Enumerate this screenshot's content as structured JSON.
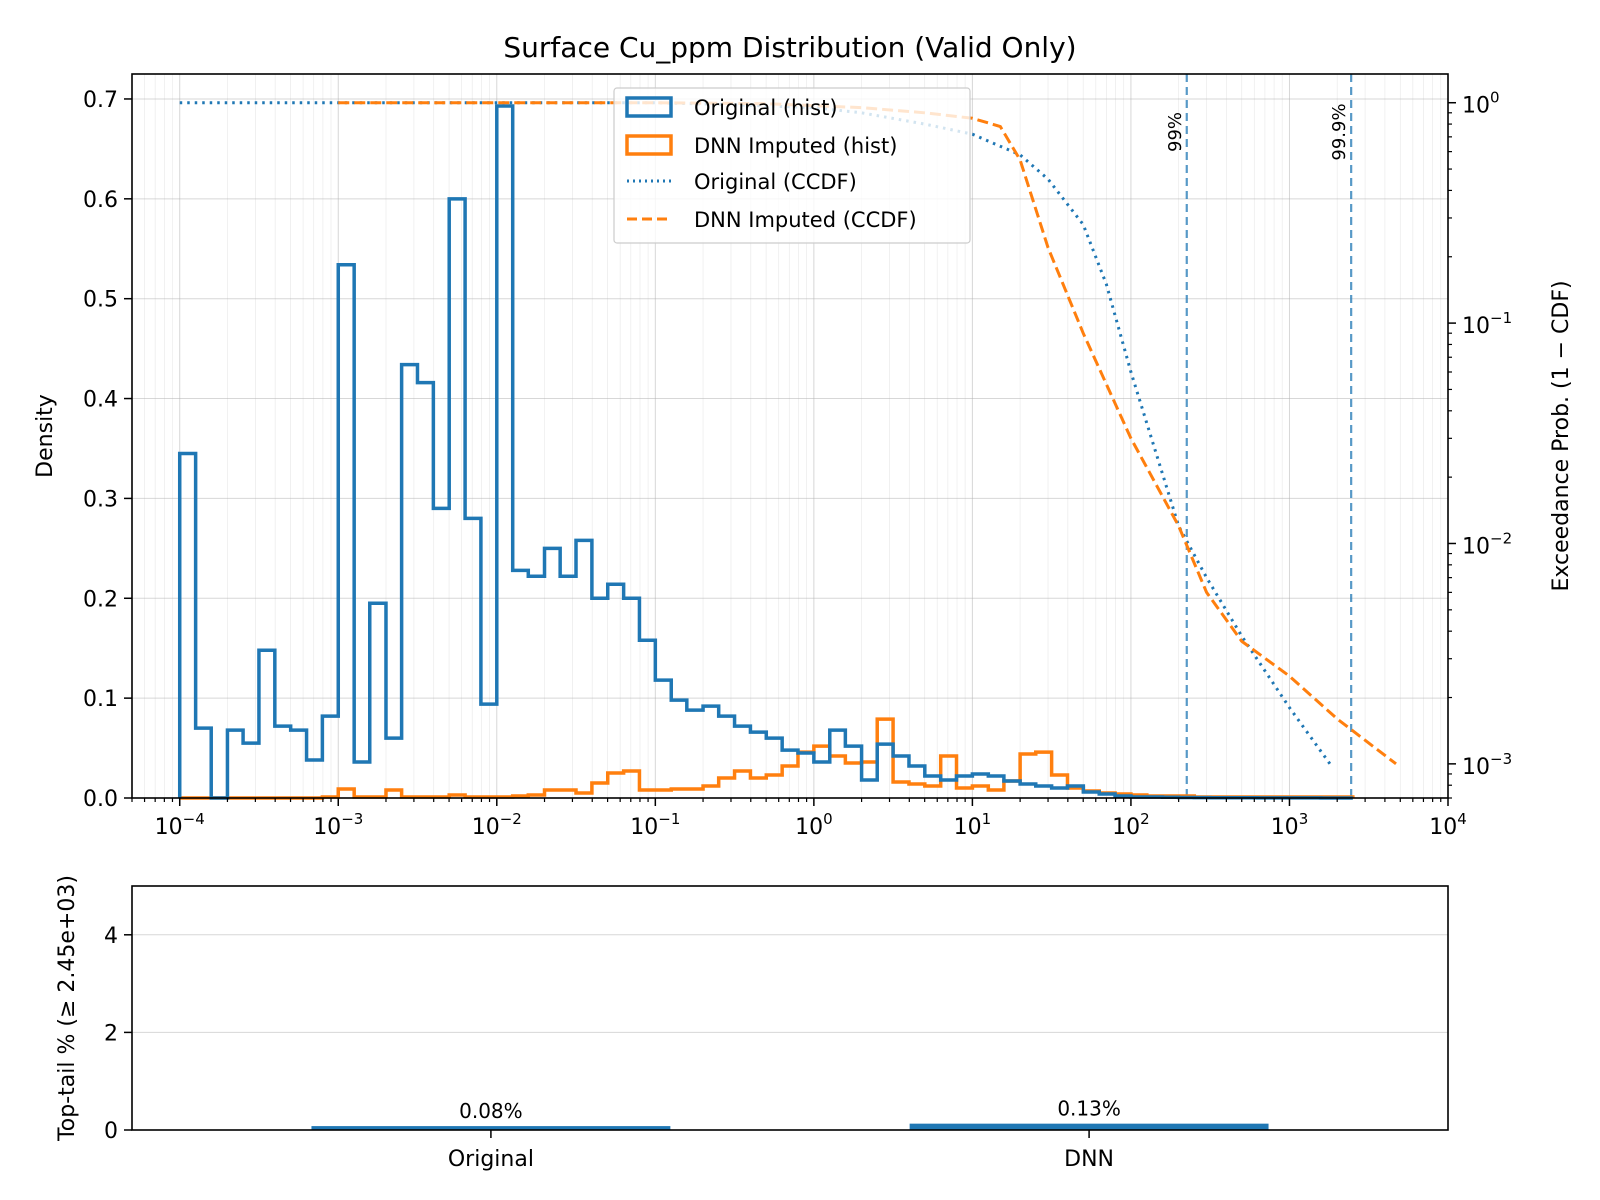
{
  "chart_data": [
    {
      "type": "histogram+line",
      "title": "Surface Cu_ppm Distribution (Valid Only)",
      "xscale": "log",
      "xlim": [
        5e-05,
        10000
      ],
      "x_ticks": [
        {
          "value": 0.0001,
          "base": "10",
          "exp": "−4"
        },
        {
          "value": 0.001,
          "base": "10",
          "exp": "−3"
        },
        {
          "value": 0.01,
          "base": "10",
          "exp": "−2"
        },
        {
          "value": 0.1,
          "base": "10",
          "exp": "−1"
        },
        {
          "value": 1,
          "base": "10",
          "exp": "0"
        },
        {
          "value": 10,
          "base": "10",
          "exp": "1"
        },
        {
          "value": 100,
          "base": "10",
          "exp": "2"
        },
        {
          "value": 1000,
          "base": "10",
          "exp": "3"
        },
        {
          "value": 10000,
          "base": "10",
          "exp": "4"
        }
      ],
      "ylabel": "Density",
      "ylim": [
        0,
        0.725
      ],
      "y_ticks": [
        "0.0",
        "0.1",
        "0.2",
        "0.3",
        "0.4",
        "0.5",
        "0.6",
        "0.7"
      ],
      "y2label": "Exceedance Prob. (1 − CDF)",
      "y2scale": "log",
      "y2lim": [
        0.0007,
        1.35
      ],
      "y2_ticks": [
        {
          "value": 1,
          "base": "10",
          "exp": "0"
        },
        {
          "value": 0.1,
          "base": "10",
          "exp": "−1"
        },
        {
          "value": 0.01,
          "base": "10",
          "exp": "−2"
        },
        {
          "value": 0.001,
          "base": "10",
          "exp": "−3"
        }
      ],
      "grid": true,
      "legend_position": "upper center",
      "series": [
        {
          "name": "Original (hist)",
          "kind": "step-histogram",
          "axis": "left",
          "color": "#1f77b4",
          "bin_edges": [
            0.0001,
            0.000126,
            0.000158,
            0.0002,
            0.000251,
            0.000316,
            0.000398,
            0.000501,
            0.000631,
            0.000794,
            0.001,
            0.00126,
            0.00158,
            0.002,
            0.00251,
            0.00316,
            0.00398,
            0.00501,
            0.00631,
            0.00794,
            0.01,
            0.0126,
            0.0158,
            0.02,
            0.0251,
            0.0316,
            0.0398,
            0.0501,
            0.0631,
            0.0794,
            0.1,
            0.126,
            0.158,
            0.2,
            0.251,
            0.316,
            0.398,
            0.501,
            0.631,
            0.794,
            1,
            1.26,
            1.58,
            2,
            2.51,
            3.16,
            3.98,
            5.01,
            6.31,
            7.94,
            10,
            12.6,
            15.8,
            20,
            25.1,
            31.6,
            39.8,
            50.1,
            63.1,
            79.4,
            100,
            126,
            158,
            200,
            251,
            316,
            398,
            501,
            631,
            794,
            1000,
            1260,
            1580,
            2000,
            2510
          ],
          "values": [
            0.345,
            0.07,
            0,
            0.068,
            0.055,
            0.148,
            0.072,
            0.068,
            0.038,
            0.082,
            0.534,
            0.036,
            0.195,
            0.06,
            0.434,
            0.416,
            0.29,
            0.6,
            0.28,
            0.094,
            0.693,
            0.228,
            0.222,
            0.25,
            0.222,
            0.258,
            0.2,
            0.214,
            0.2,
            0.158,
            0.118,
            0.098,
            0.088,
            0.092,
            0.082,
            0.072,
            0.066,
            0.06,
            0.048,
            0.045,
            0.036,
            0.068,
            0.052,
            0.018,
            0.054,
            0.042,
            0.032,
            0.022,
            0.018,
            0.022,
            0.024,
            0.022,
            0.017,
            0.014,
            0.012,
            0.01,
            0.012,
            0.006,
            0.004,
            0.002,
            0.001,
            0.001,
            0.0008,
            0.0005,
            0.0004,
            0.0003,
            0.0002,
            0.0002,
            0.0001,
            0.0001,
            0.0001,
            0.0001,
            0,
            0
          ]
        },
        {
          "name": "DNN Imputed (hist)",
          "kind": "step-histogram",
          "axis": "left",
          "color": "#ff7f0e",
          "bin_edges": [
            0.0001,
            0.000126,
            0.000158,
            0.0002,
            0.000251,
            0.000316,
            0.000398,
            0.000501,
            0.000631,
            0.000794,
            0.001,
            0.00126,
            0.00158,
            0.002,
            0.00251,
            0.00316,
            0.00398,
            0.00501,
            0.00631,
            0.00794,
            0.01,
            0.0126,
            0.0158,
            0.02,
            0.0251,
            0.0316,
            0.0398,
            0.0501,
            0.0631,
            0.0794,
            0.1,
            0.126,
            0.158,
            0.2,
            0.251,
            0.316,
            0.398,
            0.501,
            0.631,
            0.794,
            1,
            1.26,
            1.58,
            2,
            2.51,
            3.16,
            3.98,
            5.01,
            6.31,
            7.94,
            10,
            12.6,
            15.8,
            20,
            25.1,
            31.6,
            39.8,
            50.1,
            63.1,
            79.4,
            100,
            126,
            158,
            200,
            251,
            316,
            398,
            501,
            631,
            794,
            1000,
            1260,
            1580,
            2000,
            2510
          ],
          "values": [
            0,
            0,
            0,
            0,
            0,
            0,
            0,
            0,
            0,
            0.001,
            0.009,
            0.001,
            0.001,
            0.008,
            0.001,
            0.001,
            0.001,
            0.003,
            0.001,
            0.001,
            0.001,
            0.002,
            0.003,
            0.008,
            0.008,
            0.005,
            0.015,
            0.025,
            0.027,
            0.008,
            0.008,
            0.009,
            0.009,
            0.012,
            0.02,
            0.027,
            0.02,
            0.023,
            0.032,
            0.046,
            0.052,
            0.042,
            0.035,
            0.036,
            0.079,
            0.016,
            0.014,
            0.012,
            0.042,
            0.01,
            0.012,
            0.008,
            0.017,
            0.044,
            0.046,
            0.023,
            0.01,
            0.007,
            0.005,
            0.004,
            0.003,
            0.002,
            0.002,
            0.002,
            0.001,
            0.001,
            0.001,
            0.001,
            0.001,
            0.001,
            0.001,
            0.001,
            0.001,
            0.001
          ]
        },
        {
          "name": "Original (CCDF)",
          "kind": "line",
          "axis": "right",
          "style": "dotted",
          "color": "#1f77b4",
          "x": [
            0.0001,
            0.001,
            0.01,
            0.1,
            0.3,
            1,
            2,
            5,
            10,
            20,
            30,
            50,
            70,
            100,
            200,
            300,
            500,
            1000,
            1800
          ],
          "y": [
            1,
            1,
            1,
            1,
            0.98,
            0.95,
            0.9,
            0.8,
            0.72,
            0.58,
            0.45,
            0.28,
            0.15,
            0.06,
            0.012,
            0.007,
            0.0038,
            0.0018,
            0.001
          ]
        },
        {
          "name": "DNN Imputed (CCDF)",
          "kind": "line",
          "axis": "right",
          "style": "dashed",
          "color": "#ff7f0e",
          "x": [
            0.001,
            0.01,
            0.1,
            0.5,
            1,
            2,
            5,
            10,
            15,
            20,
            30,
            50,
            100,
            200,
            300,
            500,
            1000,
            2000,
            4700
          ],
          "y": [
            1,
            1,
            1,
            0.99,
            0.97,
            0.95,
            0.9,
            0.85,
            0.78,
            0.55,
            0.22,
            0.09,
            0.03,
            0.012,
            0.006,
            0.0036,
            0.0025,
            0.0016,
            0.001
          ]
        }
      ],
      "reference_lines": [
        {
          "x": 225,
          "label": "99%",
          "color": "#1f77b4",
          "style": "dashed"
        },
        {
          "x": 2450,
          "label": "99.9%",
          "color": "#1f77b4",
          "style": "dashed"
        }
      ]
    },
    {
      "type": "bar",
      "categories": [
        "Original",
        "DNN"
      ],
      "values": [
        0.08,
        0.13
      ],
      "labels": [
        "0.08%",
        "0.13%"
      ],
      "ylabel": "Top-tail % (≥ 2.45e+03)",
      "ylim": [
        0,
        5
      ],
      "y_ticks": [
        "0",
        "2",
        "4"
      ],
      "color": "#1f77b4",
      "grid": true
    }
  ]
}
